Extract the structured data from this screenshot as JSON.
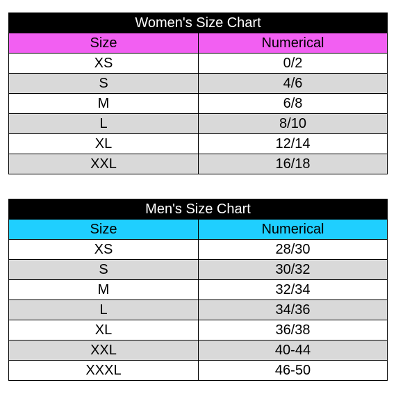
{
  "colors": {
    "title_bg": "#000000",
    "women_header_bg": "#f25ff2",
    "men_header_bg": "#1fcfff",
    "row_gray": "#d9d9d9",
    "row_white": "#ffffff"
  },
  "women": {
    "title": "Women's Size Chart",
    "headers": [
      "Size",
      "Numerical"
    ],
    "rows": [
      [
        "XS",
        "0/2"
      ],
      [
        "S",
        "4/6"
      ],
      [
        "M",
        "6/8"
      ],
      [
        "L",
        "8/10"
      ],
      [
        "XL",
        "12/14"
      ],
      [
        "XXL",
        "16/18"
      ]
    ]
  },
  "men": {
    "title": "Men's Size Chart",
    "headers": [
      "Size",
      "Numerical"
    ],
    "rows": [
      [
        "XS",
        "28/30"
      ],
      [
        "S",
        "30/32"
      ],
      [
        "M",
        "32/34"
      ],
      [
        "L",
        "34/36"
      ],
      [
        "XL",
        "36/38"
      ],
      [
        "XXL",
        "40-44"
      ],
      [
        "XXXL",
        "46-50"
      ]
    ]
  }
}
